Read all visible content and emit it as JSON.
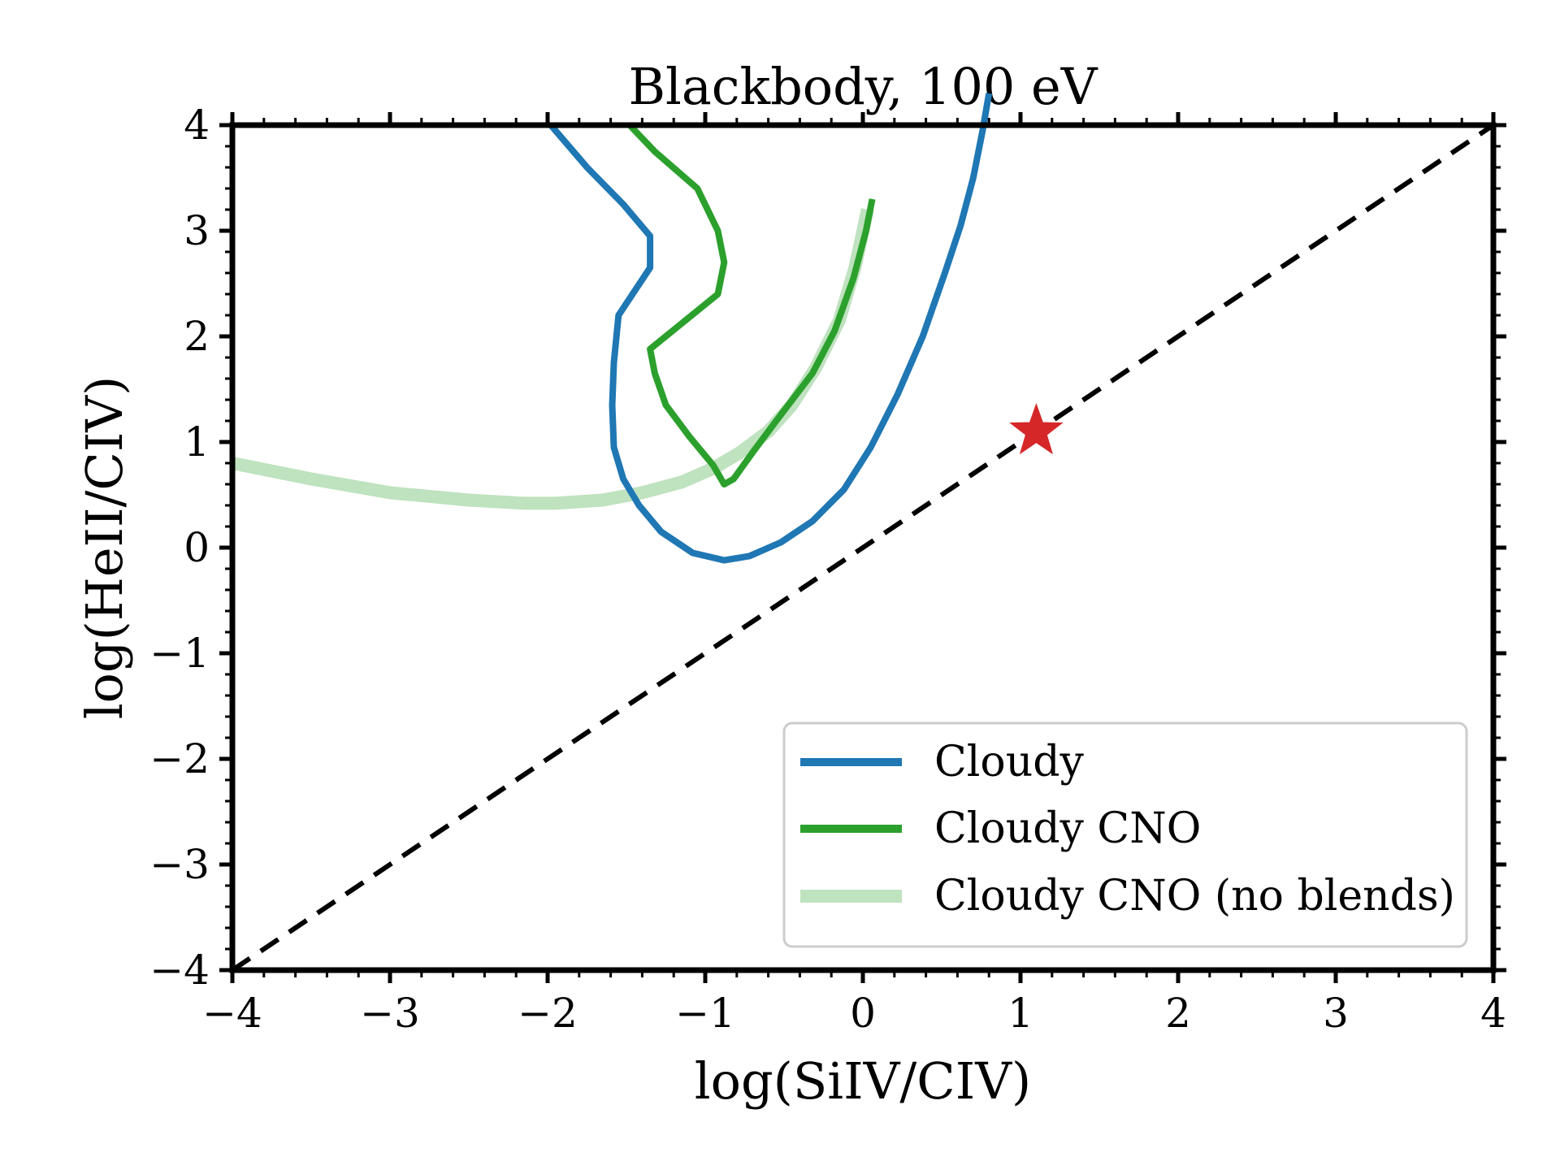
{
  "chart_data": {
    "type": "line",
    "title": "Blackbody, 100 eV",
    "xlabel": "log(SiIV/CIV)",
    "ylabel": "log(HeII/CIV)",
    "xlim": [
      -4,
      4
    ],
    "ylim": [
      -4,
      4
    ],
    "xticks": [
      -4,
      -3,
      -2,
      -1,
      0,
      1,
      2,
      3,
      4
    ],
    "yticks": [
      -4,
      -3,
      -2,
      -1,
      0,
      1,
      2,
      3,
      4
    ],
    "xtick_labels": [
      "−4",
      "−3",
      "−2",
      "−1",
      "0",
      "1",
      "2",
      "3",
      "4"
    ],
    "ytick_labels": [
      "−4",
      "−3",
      "−2",
      "−1",
      "0",
      "1",
      "2",
      "3",
      "4"
    ],
    "grid": false,
    "legend_position": "lower-right",
    "series": [
      {
        "name": "Cloudy",
        "color": "#1f77b4",
        "alpha": 1,
        "x": [
          -1.98,
          -1.75,
          -1.52,
          -1.35,
          -1.35,
          -1.55,
          -1.58,
          -1.59,
          -1.58,
          -1.52,
          -1.42,
          -1.28,
          -1.08,
          -0.88,
          -0.72,
          -0.52,
          -0.32,
          -0.12,
          0.05,
          0.22,
          0.38,
          0.52,
          0.62,
          0.7,
          0.76,
          0.8
        ],
        "y": [
          4.0,
          3.6,
          3.25,
          2.95,
          2.65,
          2.2,
          1.75,
          1.35,
          0.95,
          0.65,
          0.4,
          0.15,
          -0.05,
          -0.12,
          -0.08,
          0.05,
          0.25,
          0.55,
          0.95,
          1.45,
          2.0,
          2.6,
          3.05,
          3.5,
          3.95,
          4.3
        ]
      },
      {
        "name": "Cloudy CNO",
        "color": "#2ca02c",
        "alpha": 1,
        "x": [
          -1.48,
          -1.32,
          -1.05,
          -0.92,
          -0.88,
          -0.92,
          -1.35,
          -1.32,
          -1.25,
          -1.1,
          -0.95,
          -0.88,
          -0.82,
          -0.7,
          -0.55,
          -0.32,
          -0.18,
          -0.06,
          0.02,
          0.06
        ],
        "y": [
          4.0,
          3.75,
          3.4,
          3.0,
          2.7,
          2.4,
          1.88,
          1.65,
          1.35,
          1.05,
          0.78,
          0.6,
          0.65,
          0.9,
          1.2,
          1.65,
          2.05,
          2.55,
          3.0,
          3.3
        ]
      },
      {
        "name": "Cloudy CNO (no blends)",
        "color": "#2ca02c",
        "alpha": 0.3,
        "x": [
          -4.0,
          -3.5,
          -3.0,
          -2.5,
          -2.15,
          -1.95,
          -1.65,
          -1.4,
          -1.15,
          -0.95,
          -0.78,
          -0.6,
          -0.45,
          -0.3,
          -0.15,
          -0.05,
          0.03
        ],
        "y": [
          0.8,
          0.65,
          0.52,
          0.45,
          0.42,
          0.42,
          0.45,
          0.52,
          0.62,
          0.75,
          0.9,
          1.1,
          1.35,
          1.7,
          2.15,
          2.65,
          3.2
        ]
      }
    ],
    "reference_line": {
      "name": "1:1 line",
      "style": "dashed",
      "color": "#000000",
      "x": [
        -4,
        4
      ],
      "y": [
        -4,
        4
      ]
    },
    "marker": {
      "name": "star",
      "color": "#d62728",
      "x": 1.1,
      "y": 1.1
    }
  }
}
